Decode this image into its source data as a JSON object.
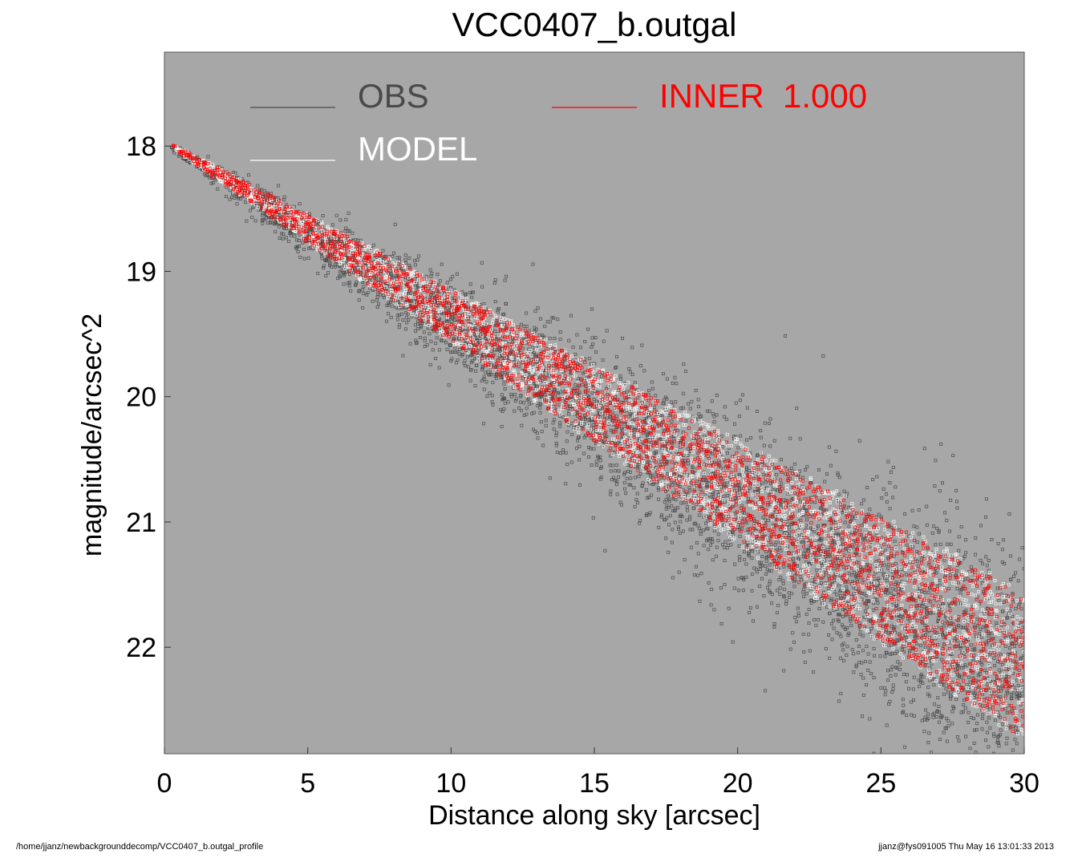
{
  "chart_data": {
    "type": "scatter",
    "title": "VCC0407_b.outgal",
    "xlabel": "Distance along sky [arcsec]",
    "ylabel": "magnitude/arcsec^2",
    "xlim": [
      0,
      30
    ],
    "ylim": [
      22.85,
      17.25
    ],
    "y_inverted": true,
    "x_ticks": [
      0,
      5,
      10,
      15,
      20,
      25,
      30
    ],
    "y_ticks": [
      18,
      19,
      20,
      21,
      22
    ],
    "grid": false,
    "legend_position": "top",
    "background_color": "#a7a7a7",
    "series": [
      {
        "name": "OBS",
        "color": "#4a4a4a",
        "marker": "open-square",
        "trend": {
          "start": {
            "x": 0.2,
            "y": 18.0
          },
          "slope": 0.145,
          "spread_start": 0.03,
          "spread_end": 0.95,
          "count": 4200,
          "x_range": [
            0.2,
            30
          ]
        }
      },
      {
        "name": "MODEL",
        "color": "#ffffff",
        "marker": "open-square",
        "trend": {
          "start": {
            "x": 0.3,
            "y": 18.0
          },
          "slope": 0.14,
          "spread_start": 0.02,
          "spread_end": 0.62,
          "count": 2600,
          "x_range": [
            0.3,
            30
          ]
        }
      },
      {
        "name": "INNER 1.000",
        "color": "#ff0000",
        "marker": "open-square",
        "trend": {
          "start": {
            "x": 0.3,
            "y": 18.0
          },
          "slope": 0.14,
          "spread_start": 0.02,
          "spread_end": 0.58,
          "count": 2400,
          "x_range": [
            0.3,
            30
          ]
        }
      }
    ],
    "legend": [
      {
        "label": "OBS",
        "color": "#4a4a4a"
      },
      {
        "label": "MODEL",
        "color": "#ffffff"
      },
      {
        "label": "INNER  1.000",
        "color": "#ff0000"
      }
    ]
  },
  "footer": {
    "left": "/home/jjanz/newbackgrounddecomp/VCC0407_b.outgal_profile",
    "right": "jjanz@fys091005  Thu May 16 13:01:33 2013"
  }
}
